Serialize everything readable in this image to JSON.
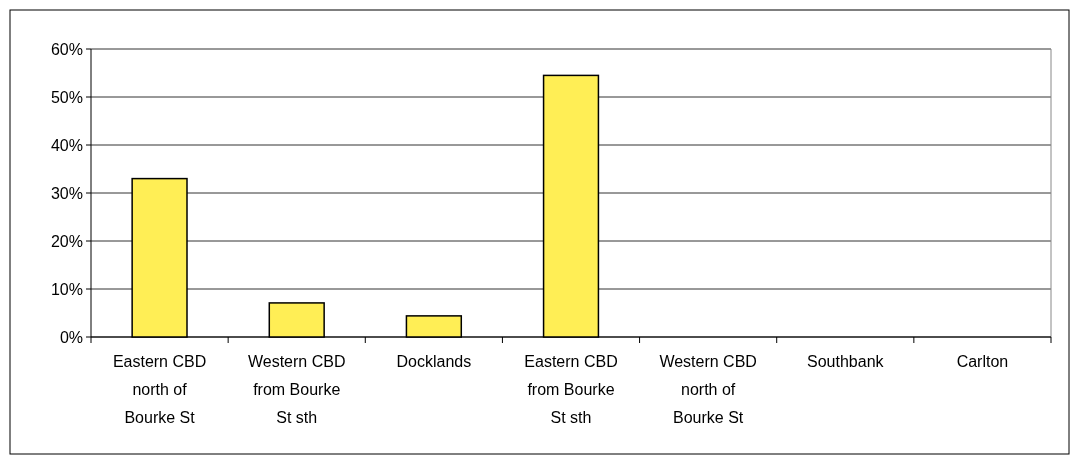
{
  "chart_data": {
    "type": "bar",
    "categories": [
      "Eastern CBD north of Bourke St",
      "Western CBD from Bourke St sth",
      "Docklands",
      "Eastern CBD from Bourke St sth",
      "Western CBD north of Bourke St",
      "Southbank",
      "Carlton"
    ],
    "values": [
      33,
      7.1,
      4.4,
      54.5,
      0,
      0,
      0
    ],
    "color": "#ffee55",
    "ylim": [
      0,
      60
    ],
    "yticks": [
      {
        "value": 0,
        "label": "0%"
      },
      {
        "value": 10,
        "label": "10%"
      },
      {
        "value": 20,
        "label": "20%"
      },
      {
        "value": 30,
        "label": "30%"
      },
      {
        "value": 40,
        "label": "40%"
      },
      {
        "value": 50,
        "label": "50%"
      },
      {
        "value": 60,
        "label": "60%"
      }
    ],
    "grid": "y"
  }
}
